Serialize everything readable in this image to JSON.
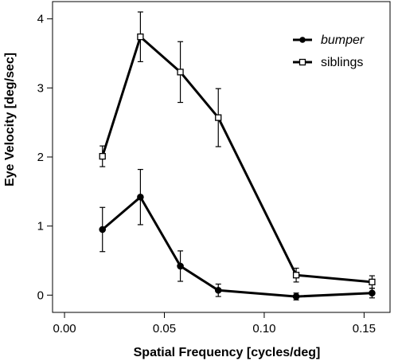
{
  "chart_data": {
    "type": "line",
    "title": "",
    "xlabel": "Spatial Frequency [cycles/deg]",
    "ylabel": "Eye Velocity [deg/sec]",
    "xlim": [
      -0.006,
      0.163
    ],
    "ylim": [
      -0.25,
      4.25
    ],
    "x_ticks": [
      0.0,
      0.05,
      0.1,
      0.15
    ],
    "x_tick_labels": [
      "0.00",
      "0.05",
      "0.10",
      "0.15"
    ],
    "y_ticks": [
      0,
      1,
      2,
      3,
      4
    ],
    "y_tick_labels": [
      "0",
      "1",
      "2",
      "3",
      "4"
    ],
    "grid": false,
    "legend_position": "top-right",
    "series": [
      {
        "name": "bumper",
        "name_style": "italic",
        "marker": "filled-circle",
        "color": "#000000",
        "x": [
          0.019,
          0.038,
          0.058,
          0.077,
          0.116,
          0.154
        ],
        "y": [
          0.95,
          1.42,
          0.42,
          0.07,
          -0.02,
          0.03
        ],
        "err": [
          0.32,
          0.4,
          0.22,
          0.09,
          0.05,
          0.07
        ]
      },
      {
        "name": "siblings",
        "name_style": "normal",
        "marker": "open-square",
        "color": "#000000",
        "x": [
          0.019,
          0.038,
          0.058,
          0.077,
          0.116,
          0.154
        ],
        "y": [
          2.01,
          3.74,
          3.23,
          2.57,
          0.29,
          0.19
        ],
        "err": [
          0.15,
          0.36,
          0.44,
          0.42,
          0.1,
          0.09
        ]
      }
    ]
  }
}
